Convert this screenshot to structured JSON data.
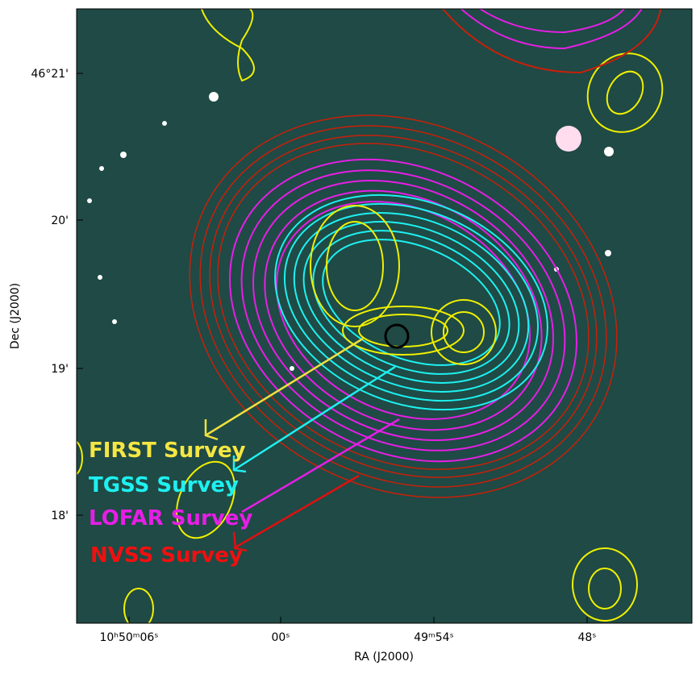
{
  "axes": {
    "x_label": "RA (J2000)",
    "y_label": "Dec (J2000)",
    "x_ticks": [
      "10ʰ50ᵐ06ˢ",
      "00ˢ",
      "49ᵐ54ˢ",
      "48ˢ"
    ],
    "y_ticks": [
      "46°21'",
      "20'",
      "19'",
      "18'"
    ]
  },
  "legend": [
    "FIRST Survey",
    "TGSS Survey",
    "LOFAR Survey",
    "NVSS Survey"
  ]
}
